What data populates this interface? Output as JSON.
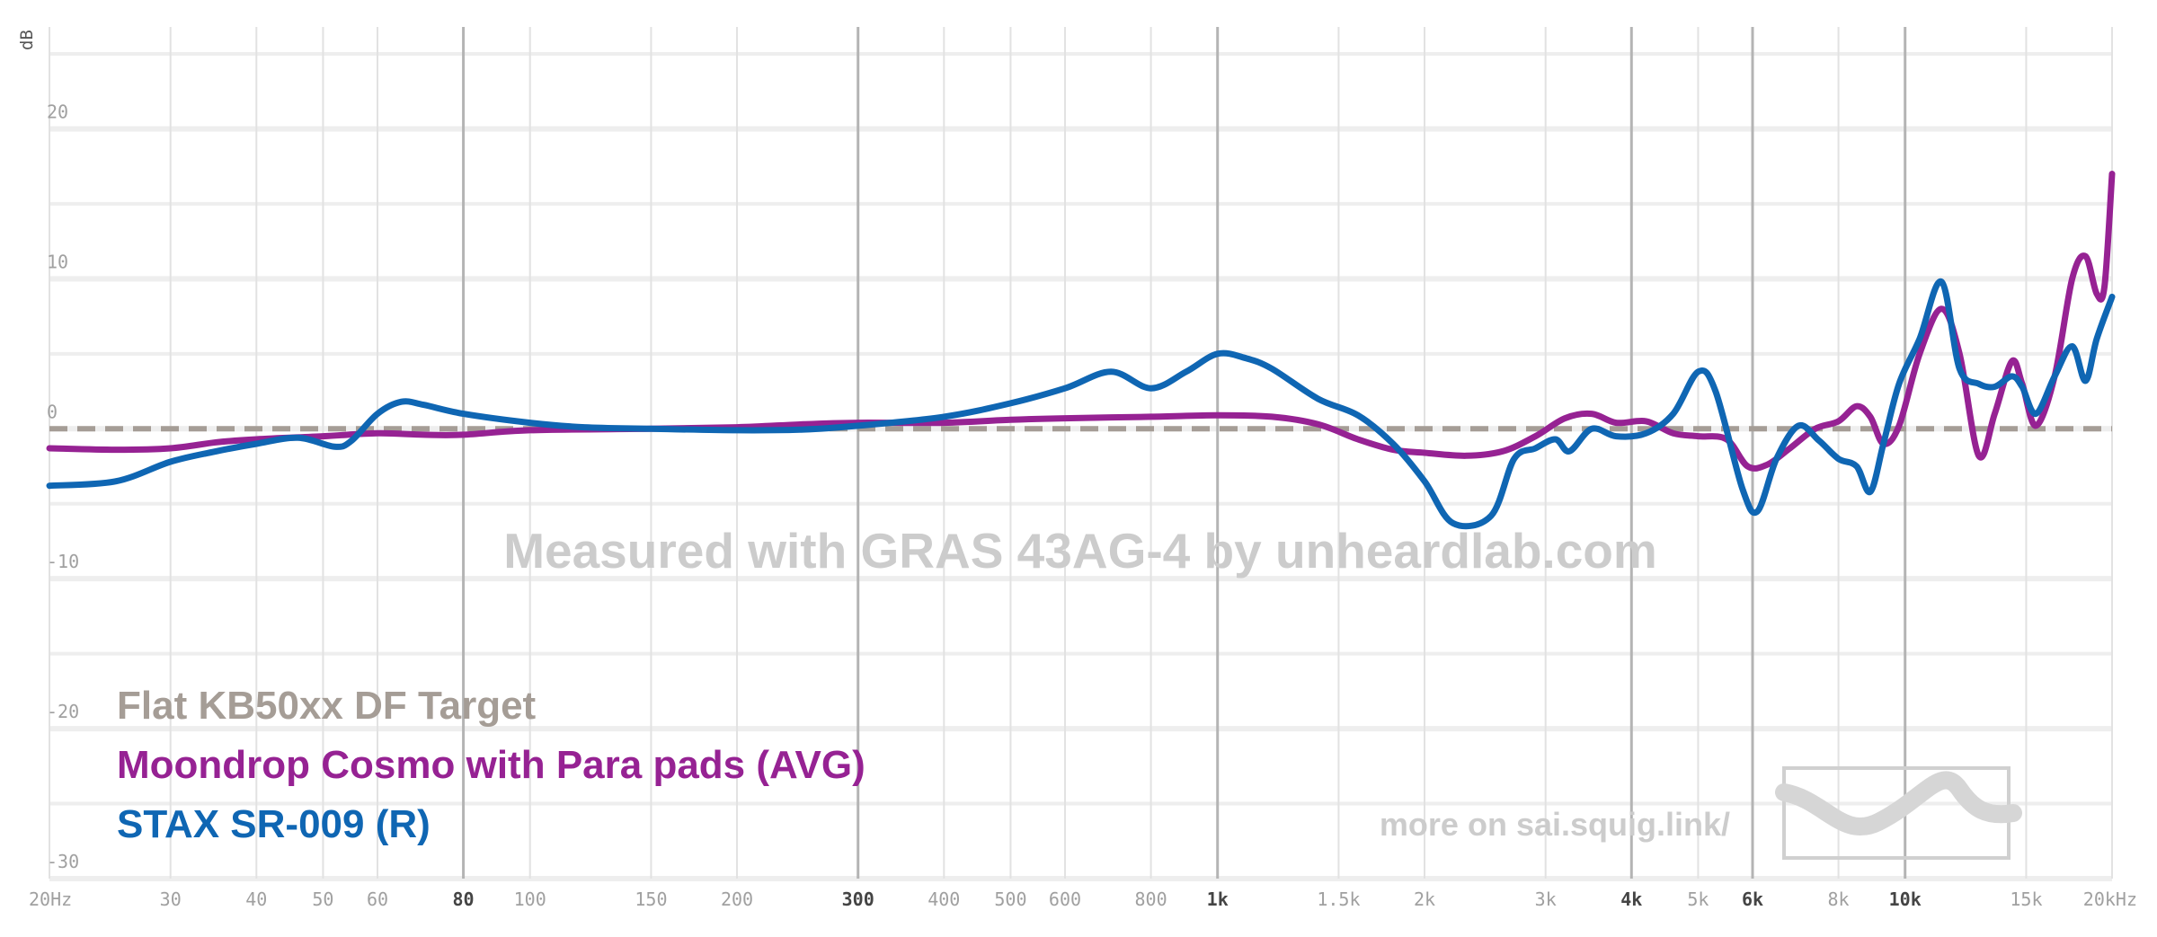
{
  "watermark": "Measured with GRAS 43AG-4 by unheardlab.com",
  "footer_link": "more on sai.squig.link/",
  "colors": {
    "target": "#a59d96",
    "cosmo": "#962293",
    "stax": "#0f66b3",
    "grid_major": "#b4b4b4",
    "grid_minor": "#e2e2e2",
    "tick_text": "#a0a0a0",
    "tick_text_bold": "#444444",
    "watermark": "#cccccc"
  },
  "chart_data": {
    "type": "line",
    "title": "",
    "xlabel": "",
    "ylabel": "dB",
    "x_scale": "log",
    "xlim": [
      20,
      20000
    ],
    "ylim": [
      -30,
      25
    ],
    "grid": true,
    "legend_position": "bottom-left",
    "y_ticks": [
      {
        "value": 20,
        "label": "20"
      },
      {
        "value": 10,
        "label": "10"
      },
      {
        "value": 0,
        "label": "0"
      },
      {
        "value": -10,
        "label": "-10"
      },
      {
        "value": -20,
        "label": "-20"
      },
      {
        "value": -30,
        "label": "-30"
      }
    ],
    "x_ticks": [
      {
        "value": 20,
        "label": "20Hz",
        "major": false
      },
      {
        "value": 30,
        "label": "30",
        "major": false
      },
      {
        "value": 40,
        "label": "40",
        "major": false
      },
      {
        "value": 50,
        "label": "50",
        "major": false
      },
      {
        "value": 60,
        "label": "60",
        "major": false
      },
      {
        "value": 80,
        "label": "80",
        "major": true
      },
      {
        "value": 100,
        "label": "100",
        "major": false
      },
      {
        "value": 150,
        "label": "150",
        "major": false
      },
      {
        "value": 200,
        "label": "200",
        "major": false
      },
      {
        "value": 300,
        "label": "300",
        "major": true
      },
      {
        "value": 400,
        "label": "400",
        "major": false
      },
      {
        "value": 500,
        "label": "500",
        "major": false
      },
      {
        "value": 600,
        "label": "600",
        "major": false
      },
      {
        "value": 800,
        "label": "800",
        "major": false
      },
      {
        "value": 1000,
        "label": "1k",
        "major": true
      },
      {
        "value": 1500,
        "label": "1.5k",
        "major": false
      },
      {
        "value": 2000,
        "label": "2k",
        "major": false
      },
      {
        "value": 3000,
        "label": "3k",
        "major": false
      },
      {
        "value": 4000,
        "label": "4k",
        "major": true
      },
      {
        "value": 5000,
        "label": "5k",
        "major": false
      },
      {
        "value": 6000,
        "label": "6k",
        "major": true
      },
      {
        "value": 8000,
        "label": "8k",
        "major": false
      },
      {
        "value": 10000,
        "label": "10k",
        "major": true
      },
      {
        "value": 15000,
        "label": "15k",
        "major": false
      },
      {
        "value": 20000,
        "label": "20kHz",
        "major": false
      }
    ],
    "series": [
      {
        "name": "Flat KB50xx DF Target",
        "key": "target",
        "style": "dashed",
        "points": [
          [
            20,
            0
          ],
          [
            20000,
            0
          ]
        ]
      },
      {
        "name": "Moondrop Cosmo with Para pads (AVG)",
        "key": "cosmo",
        "style": "solid",
        "points": [
          [
            20,
            -1.3
          ],
          [
            25,
            -1.4
          ],
          [
            30,
            -1.3
          ],
          [
            35,
            -0.9
          ],
          [
            40,
            -0.7
          ],
          [
            50,
            -0.5
          ],
          [
            60,
            -0.3
          ],
          [
            70,
            -0.4
          ],
          [
            80,
            -0.4
          ],
          [
            100,
            -0.1
          ],
          [
            150,
            0
          ],
          [
            200,
            0.1
          ],
          [
            250,
            0.3
          ],
          [
            300,
            0.4
          ],
          [
            400,
            0.4
          ],
          [
            500,
            0.6
          ],
          [
            600,
            0.7
          ],
          [
            800,
            0.8
          ],
          [
            1000,
            0.9
          ],
          [
            1200,
            0.8
          ],
          [
            1400,
            0.3
          ],
          [
            1600,
            -0.7
          ],
          [
            1800,
            -1.4
          ],
          [
            2000,
            -1.6
          ],
          [
            2300,
            -1.8
          ],
          [
            2600,
            -1.5
          ],
          [
            2900,
            -0.5
          ],
          [
            3200,
            0.7
          ],
          [
            3500,
            1.0
          ],
          [
            3800,
            0.4
          ],
          [
            4200,
            0.5
          ],
          [
            4600,
            -0.3
          ],
          [
            5000,
            -0.5
          ],
          [
            5500,
            -0.7
          ],
          [
            5900,
            -2.5
          ],
          [
            6300,
            -2.4
          ],
          [
            6800,
            -1.3
          ],
          [
            7400,
            0.0
          ],
          [
            8000,
            0.5
          ],
          [
            8500,
            1.5
          ],
          [
            8900,
            0.8
          ],
          [
            9300,
            -1.0
          ],
          [
            9800,
            0.2
          ],
          [
            10500,
            5.0
          ],
          [
            11300,
            8.0
          ],
          [
            12000,
            5.0
          ],
          [
            12800,
            -1.8
          ],
          [
            13500,
            1.0
          ],
          [
            14300,
            4.5
          ],
          [
            14800,
            3.0
          ],
          [
            15500,
            0.2
          ],
          [
            16500,
            3.5
          ],
          [
            17500,
            10.0
          ],
          [
            18300,
            11.5
          ],
          [
            19000,
            9.0
          ],
          [
            19500,
            9.5
          ],
          [
            20000,
            17.0
          ]
        ]
      },
      {
        "name": "STAX SR-009 (R)",
        "key": "stax",
        "style": "solid",
        "points": [
          [
            20,
            -3.8
          ],
          [
            25,
            -3.5
          ],
          [
            30,
            -2.2
          ],
          [
            35,
            -1.5
          ],
          [
            40,
            -1.0
          ],
          [
            46,
            -0.6
          ],
          [
            52,
            -1.2
          ],
          [
            55,
            -0.8
          ],
          [
            60,
            1.0
          ],
          [
            65,
            1.8
          ],
          [
            70,
            1.6
          ],
          [
            80,
            1.0
          ],
          [
            100,
            0.4
          ],
          [
            120,
            0.1
          ],
          [
            150,
            0
          ],
          [
            200,
            -0.1
          ],
          [
            250,
            -0.05
          ],
          [
            300,
            0.2
          ],
          [
            400,
            0.8
          ],
          [
            500,
            1.7
          ],
          [
            600,
            2.7
          ],
          [
            700,
            3.8
          ],
          [
            800,
            2.7
          ],
          [
            900,
            3.8
          ],
          [
            1000,
            5.0
          ],
          [
            1100,
            4.7
          ],
          [
            1200,
            4.0
          ],
          [
            1400,
            2.0
          ],
          [
            1600,
            0.9
          ],
          [
            1800,
            -1.0
          ],
          [
            2000,
            -3.5
          ],
          [
            2200,
            -6.3
          ],
          [
            2500,
            -5.8
          ],
          [
            2700,
            -2.0
          ],
          [
            2900,
            -1.3
          ],
          [
            3100,
            -0.7
          ],
          [
            3250,
            -1.5
          ],
          [
            3500,
            0
          ],
          [
            3800,
            -0.5
          ],
          [
            4200,
            -0.3
          ],
          [
            4600,
            1.0
          ],
          [
            5000,
            3.8
          ],
          [
            5300,
            2.5
          ],
          [
            5800,
            -4.0
          ],
          [
            6100,
            -5.5
          ],
          [
            6500,
            -2.0
          ],
          [
            7000,
            0.2
          ],
          [
            7500,
            -0.8
          ],
          [
            8000,
            -2.0
          ],
          [
            8500,
            -2.5
          ],
          [
            8900,
            -4.2
          ],
          [
            9300,
            -1.0
          ],
          [
            9800,
            3.0
          ],
          [
            10500,
            6.0
          ],
          [
            11300,
            9.8
          ],
          [
            12000,
            4.0
          ],
          [
            12800,
            3.0
          ],
          [
            13500,
            2.8
          ],
          [
            14300,
            3.5
          ],
          [
            14800,
            2.8
          ],
          [
            15500,
            1.0
          ],
          [
            16500,
            3.5
          ],
          [
            17500,
            5.5
          ],
          [
            18300,
            3.2
          ],
          [
            19000,
            6.0
          ],
          [
            20000,
            8.8
          ]
        ]
      }
    ]
  }
}
